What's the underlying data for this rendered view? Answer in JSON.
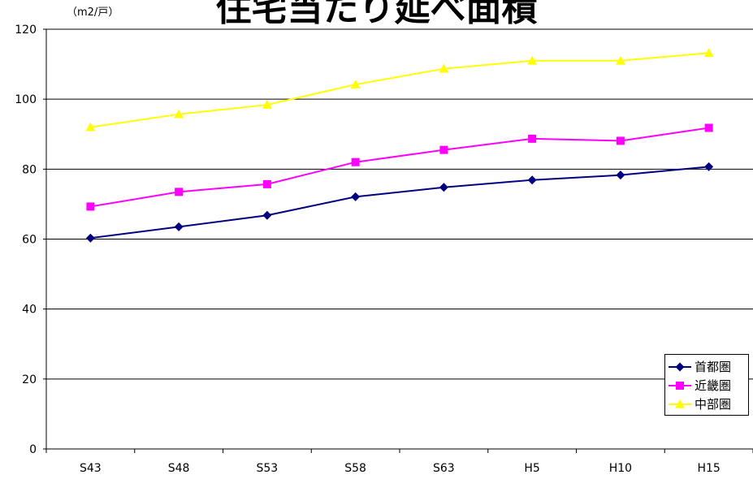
{
  "chart_data": {
    "type": "line",
    "title": "住宅当たり延べ面積",
    "ylabel": "（m2/戸）",
    "xlabel": "",
    "categories": [
      "S43",
      "S48",
      "S53",
      "S58",
      "S63",
      "H5",
      "H10",
      "H15"
    ],
    "ylim": [
      0,
      120
    ],
    "yticks": [
      0,
      20,
      40,
      60,
      80,
      100,
      120
    ],
    "grid": true,
    "legend_position": "bottom-right",
    "series": [
      {
        "name": "首都圏",
        "color": "#000080",
        "marker": "diamond",
        "values": [
          60.3,
          63.5,
          66.8,
          72.1,
          74.8,
          76.9,
          78.3,
          80.7
        ]
      },
      {
        "name": "近畿圏",
        "color": "#FF00FF",
        "marker": "square",
        "values": [
          69.3,
          73.5,
          75.7,
          82.0,
          85.5,
          88.7,
          88.1,
          91.8
        ]
      },
      {
        "name": "中部圏",
        "color": "#FFFF00",
        "marker": "triangle",
        "values": [
          92.0,
          95.7,
          98.4,
          104.2,
          108.7,
          111.0,
          111.0,
          113.2
        ]
      }
    ]
  }
}
